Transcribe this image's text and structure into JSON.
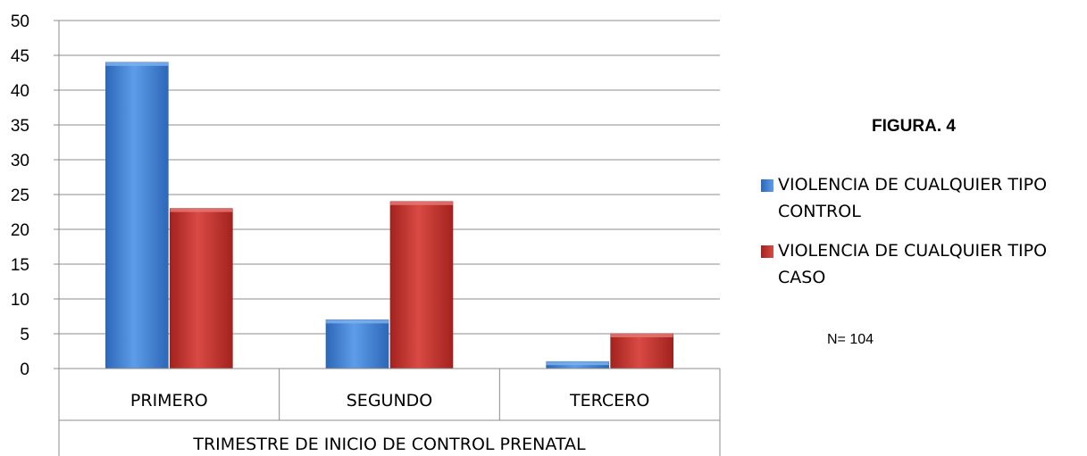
{
  "chart_data": {
    "type": "bar",
    "categories": [
      "PRIMERO",
      "SEGUNDO",
      "TERCERO"
    ],
    "series": [
      {
        "name": "VIOLENCIA DE CUALQUIER TIPO CONTROL",
        "values": [
          44,
          7,
          1
        ],
        "color": "#3d7ed6"
      },
      {
        "name": "VIOLENCIA DE CUALQUIER TIPO CASO",
        "values": [
          23,
          24,
          5
        ],
        "color": "#c0302c"
      }
    ],
    "title": "FIGURA. 4",
    "xlabel": "TRIMESTRE DE INICIO DE CONTROL PRENATAL",
    "ylabel": "",
    "ylim": [
      0,
      50
    ],
    "yticks": [
      0,
      5,
      10,
      15,
      20,
      25,
      30,
      35,
      40,
      45,
      50
    ],
    "grid": true,
    "legend": "right",
    "note": "N= 104"
  }
}
